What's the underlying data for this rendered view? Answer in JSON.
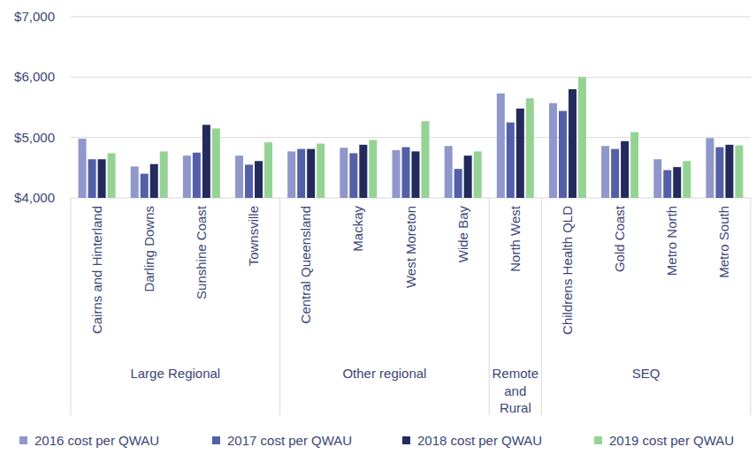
{
  "chart_data": {
    "type": "bar",
    "categories": [
      "Cairns and Hinterland",
      "Darling Downs",
      "Sunshine Coast",
      "Townsville",
      "Central Queensland",
      "Mackay",
      "West Moreton",
      "Wide Bay",
      "North West",
      "Childrens Health QLD",
      "Gold Coast",
      "Metro North",
      "Metro South"
    ],
    "category_groups": [
      {
        "label": "Large Regional",
        "size": 4
      },
      {
        "label": "Other regional",
        "size": 4
      },
      {
        "label": "Remote and Rural",
        "size": 1
      },
      {
        "label": "SEQ",
        "size": 4
      }
    ],
    "series": [
      {
        "name": "2016 cost per QWAU",
        "color": "#8f97cb",
        "values": [
          4980,
          4520,
          4700,
          4700,
          4770,
          4830,
          4790,
          4860,
          5730,
          5570,
          4860,
          4640,
          4990
        ]
      },
      {
        "name": "2017 cost per QWAU",
        "color": "#5360a8",
        "values": [
          4640,
          4400,
          4750,
          4550,
          4810,
          4740,
          4840,
          4480,
          5250,
          5440,
          4810,
          4460,
          4840
        ]
      },
      {
        "name": "2018 cost per QWAU",
        "color": "#232a5c",
        "values": [
          4640,
          4560,
          5210,
          4610,
          4810,
          4880,
          4770,
          4700,
          5480,
          5800,
          4940,
          4510,
          4880
        ]
      },
      {
        "name": "2019 cost per QWAU",
        "color": "#95d395",
        "values": [
          4740,
          4770,
          5150,
          4920,
          4900,
          4960,
          5270,
          4770,
          5650,
          6000,
          5090,
          4610,
          4870
        ]
      }
    ],
    "ylim": [
      4000,
      7000
    ],
    "yticks": [
      {
        "value": 4000,
        "label": "$4,000"
      },
      {
        "value": 5000,
        "label": "$5,000"
      },
      {
        "value": 6000,
        "label": "$6,000"
      },
      {
        "value": 7000,
        "label": "$7,000"
      }
    ],
    "grid": true,
    "legend": "bottom"
  }
}
